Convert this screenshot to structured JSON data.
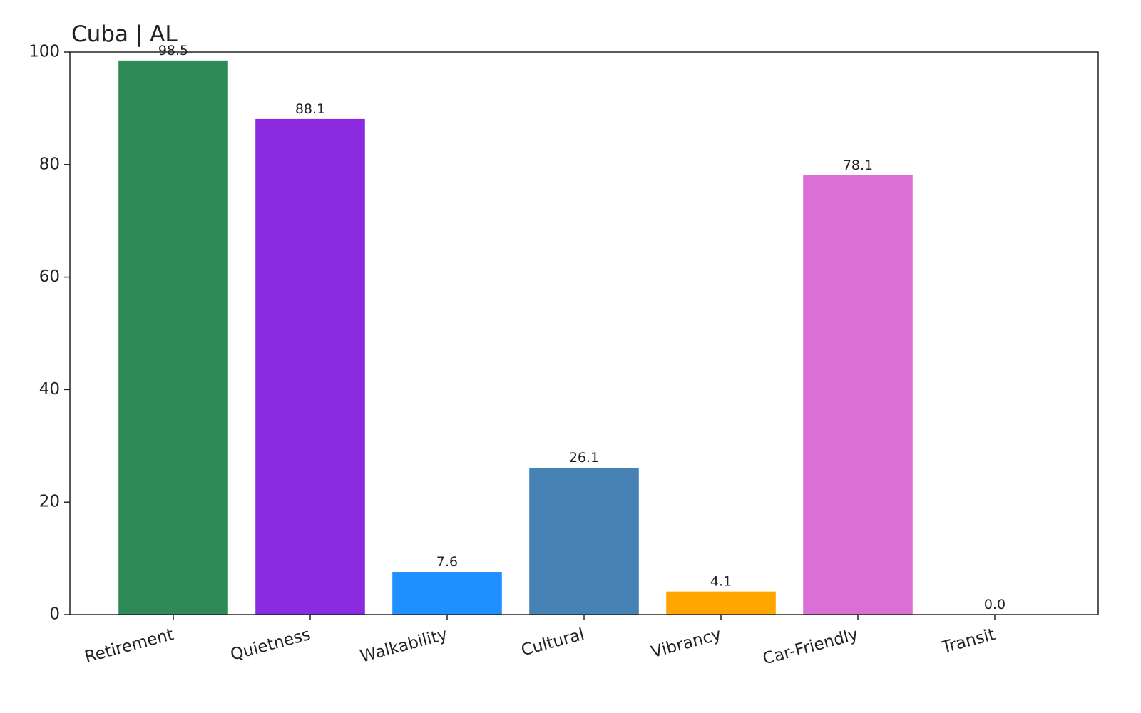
{
  "chart_data": {
    "type": "bar",
    "title": "Cuba | AL",
    "categories": [
      "Retirement",
      "Quietness",
      "Walkability",
      "Cultural",
      "Vibrancy",
      "Car-Friendly",
      "Transit"
    ],
    "values": [
      98.5,
      88.1,
      7.6,
      26.1,
      4.1,
      78.1,
      0
    ],
    "value_labels": [
      "98.5",
      "88.1",
      "7.6",
      "26.1",
      "4.1",
      "78.1",
      "0.0"
    ],
    "colors": [
      "#2e8b57",
      "#8a2be2",
      "#1e90ff",
      "#4682b4",
      "#ffa500",
      "#da70d6",
      "#20b2aa"
    ],
    "ylim": [
      0,
      100
    ],
    "yticks": [
      0,
      20,
      40,
      60,
      80,
      100
    ],
    "grid": false
  }
}
